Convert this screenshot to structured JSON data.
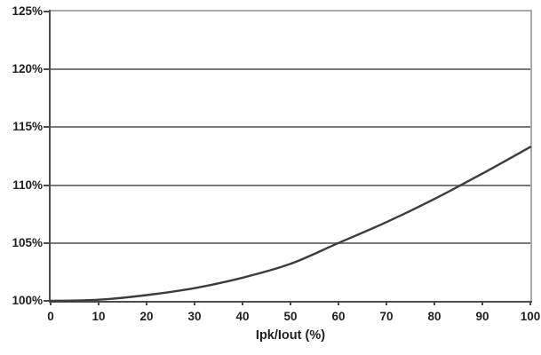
{
  "chart_data": {
    "type": "line",
    "title": "",
    "xlabel": "Ipk/Iout (%)",
    "ylabel": "",
    "x": [
      0,
      10,
      20,
      30,
      40,
      50,
      60,
      70,
      80,
      90,
      100
    ],
    "y": [
      100.0,
      100.1,
      100.5,
      101.1,
      102.0,
      103.2,
      105.0,
      106.8,
      108.8,
      111.0,
      113.3
    ],
    "xlim": [
      0,
      100
    ],
    "ylim": [
      100,
      125
    ],
    "x_tick_labels": [
      "0",
      "10",
      "20",
      "30",
      "40",
      "50",
      "60",
      "70",
      "80",
      "90",
      "100"
    ],
    "y_tick_labels": [
      "100%",
      "105%",
      "110%",
      "115%",
      "120%",
      "125%"
    ],
    "y_tick_values": [
      100,
      105,
      110,
      115,
      120,
      125
    ],
    "grid": "horizontal",
    "legend_position": "none",
    "colors": {
      "line": "#3c3c3c",
      "gridline": "#787878",
      "axis": "#4c4c4c",
      "outer_border": "#aaaaaa",
      "tick_text": "#1f1f1f",
      "background": "#ffffff"
    }
  }
}
